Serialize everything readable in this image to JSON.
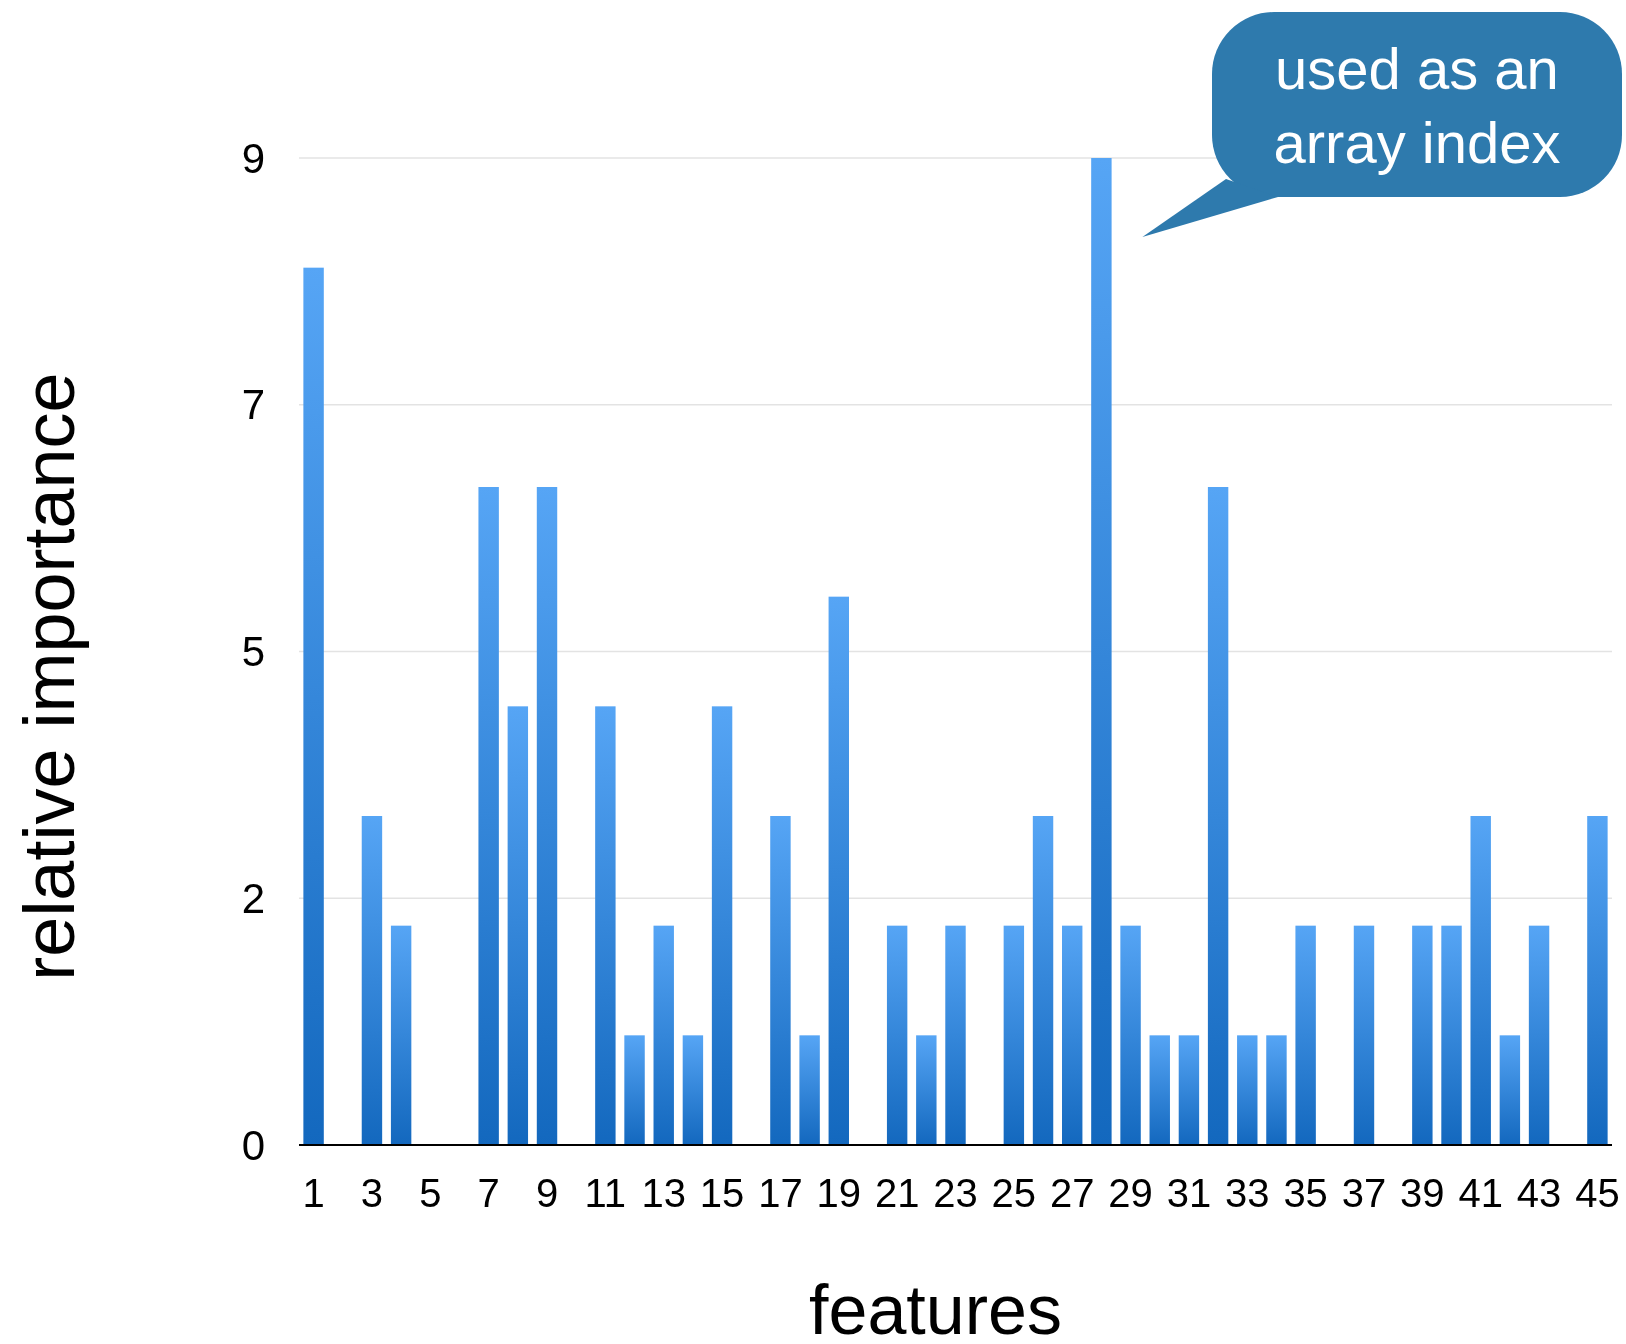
{
  "chart_data": {
    "type": "bar",
    "xlabel": "features",
    "ylabel": "relative importance",
    "x": [
      1,
      3,
      4,
      7,
      8,
      9,
      11,
      12,
      13,
      14,
      15,
      17,
      18,
      19,
      21,
      22,
      23,
      25,
      26,
      27,
      28,
      29,
      30,
      31,
      32,
      33,
      34,
      35,
      37,
      39,
      40,
      41,
      42,
      43,
      45
    ],
    "values": [
      8,
      3,
      2,
      6,
      4,
      6,
      4,
      1,
      2,
      1,
      4,
      3,
      1,
      5,
      2,
      1,
      2,
      2,
      3,
      2,
      9,
      2,
      1,
      1,
      6,
      1,
      1,
      2,
      2,
      2,
      2,
      3,
      1,
      2,
      3
    ],
    "color": "#3389e0",
    "xlim": [
      0.5,
      45.5
    ],
    "xticks": [
      1,
      3,
      5,
      7,
      9,
      11,
      13,
      15,
      17,
      19,
      21,
      23,
      25,
      27,
      29,
      31,
      33,
      35,
      37,
      39,
      41,
      43,
      45
    ],
    "ylim": [
      0,
      9
    ],
    "yticks": [
      0,
      {
        "value": 2.25,
        "label": "2"
      },
      {
        "value": 4.5,
        "label": "5"
      },
      {
        "value": 6.75,
        "label": "7"
      },
      9
    ],
    "grid": "y",
    "annotations": [
      {
        "text": "used as an\narray index",
        "x": 28,
        "y": 9
      }
    ]
  }
}
